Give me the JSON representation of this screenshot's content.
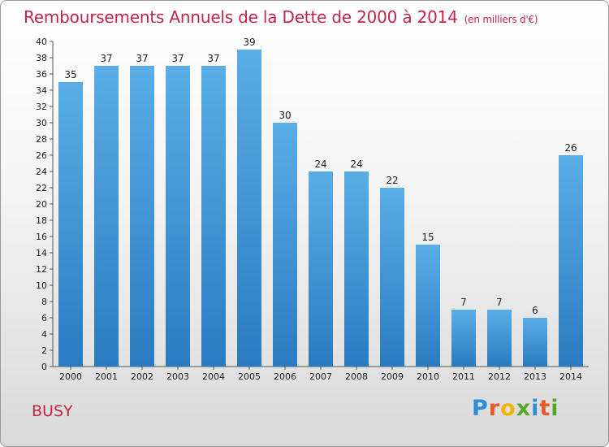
{
  "header": {
    "title": "Remboursements Annuels de la Dette de 2000 à 2014",
    "subtitle": "(en milliers d'€)"
  },
  "footer": {
    "city": "BUSY",
    "logo_letters": [
      {
        "char": "P",
        "color": "#2c8fd6"
      },
      {
        "char": "r",
        "color": "#e65a2a"
      },
      {
        "char": "o",
        "color": "#f0b400"
      },
      {
        "char": "x",
        "color": "#56a82c"
      },
      {
        "char": "i",
        "color": "#2c8fd6"
      },
      {
        "char": "t",
        "color": "#e65a2a"
      },
      {
        "char": "i",
        "color": "#56a82c"
      }
    ]
  },
  "chart_data": {
    "type": "bar",
    "title": "Remboursements Annuels de la Dette de 2000 à 2014",
    "subtitle": "(en milliers d'€)",
    "categories": [
      "2000",
      "2001",
      "2002",
      "2003",
      "2004",
      "2005",
      "2006",
      "2007",
      "2008",
      "2009",
      "2010",
      "2011",
      "2012",
      "2013",
      "2014"
    ],
    "values": [
      35,
      37,
      37,
      37,
      37,
      39,
      30,
      24,
      24,
      22,
      15,
      7,
      7,
      6,
      26
    ],
    "ylim": [
      0,
      40
    ],
    "ytick_step": 2,
    "grid": false,
    "xlabel": "",
    "ylabel": "",
    "colors": {
      "bar_top": "#5aaee6",
      "bar_bottom": "#2a7bc0",
      "axis": "#555555"
    }
  }
}
